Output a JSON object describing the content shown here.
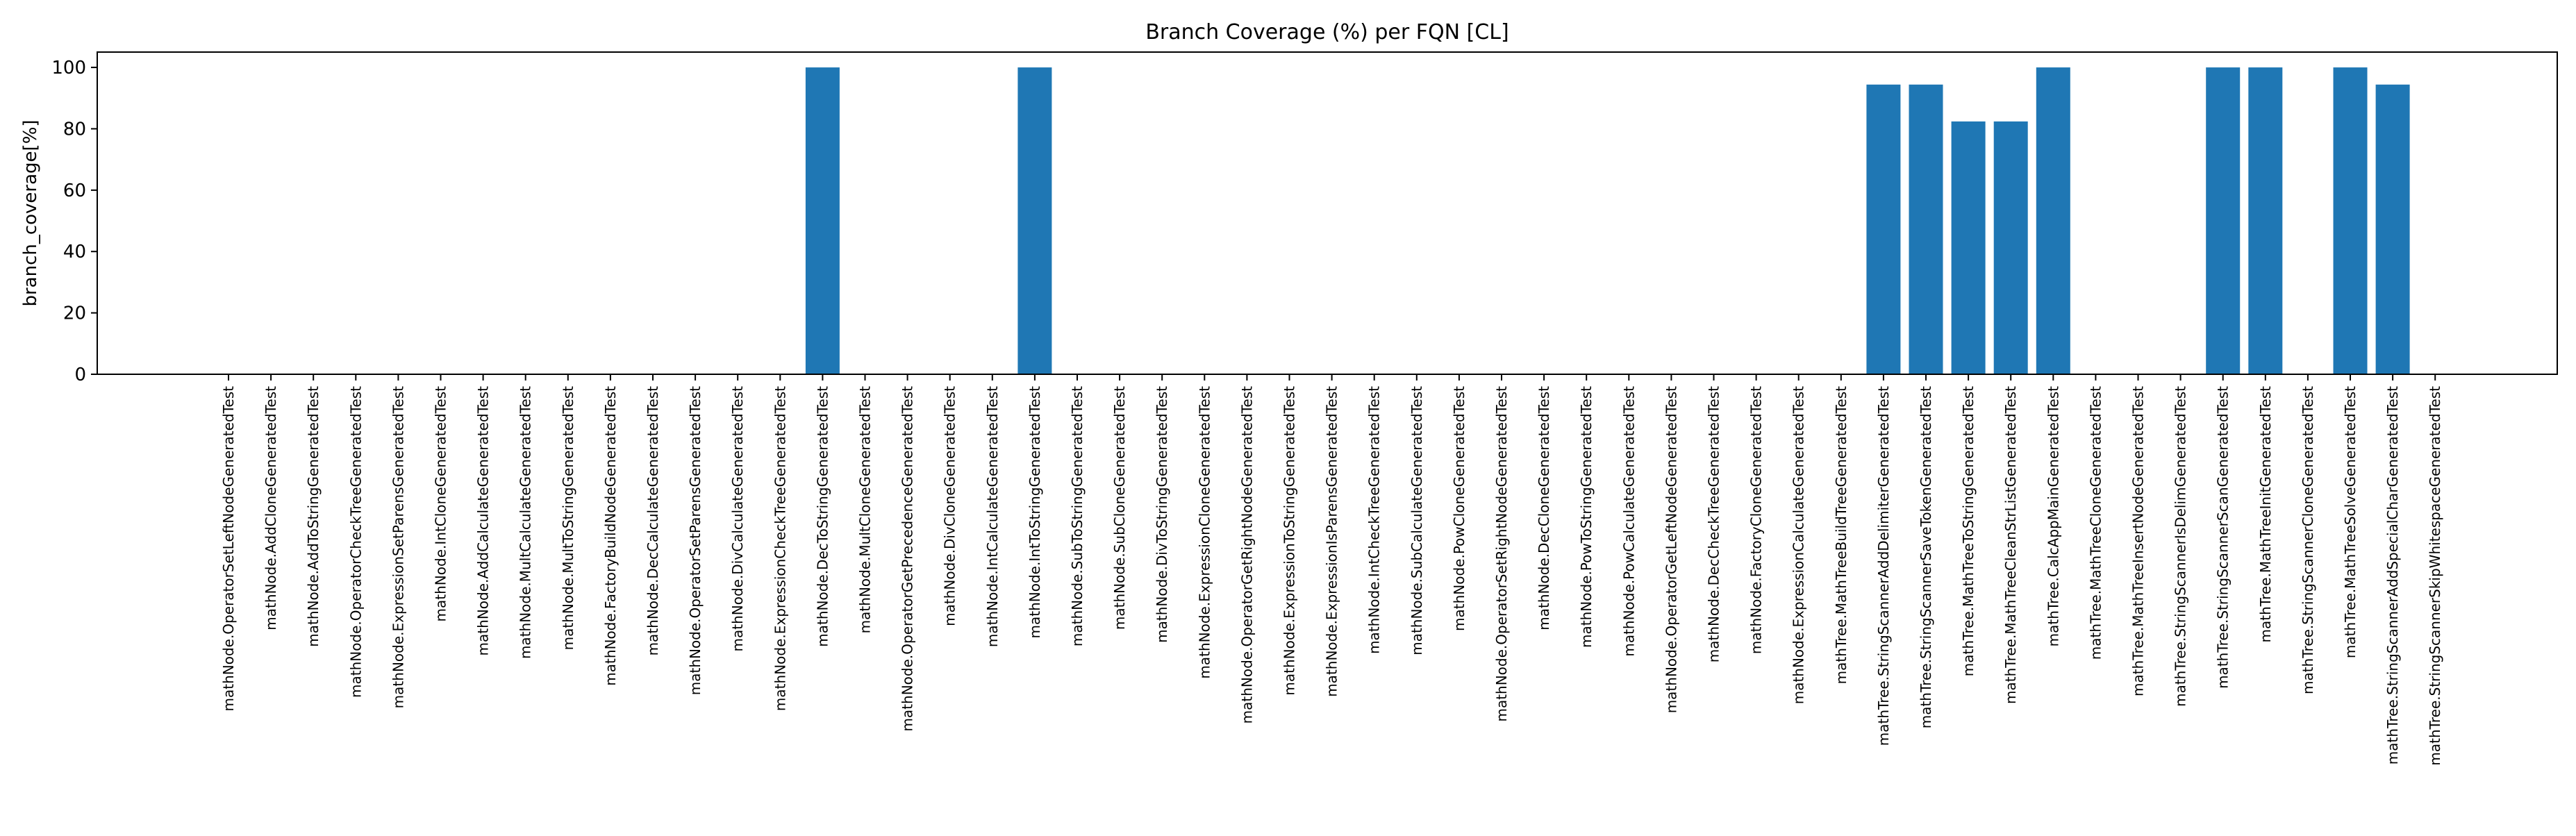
{
  "chart_data": {
    "type": "bar",
    "title": "Branch Coverage (%) per FQN [CL]",
    "xlabel": "",
    "ylabel": "branch_coverage[%]",
    "ylim": [
      0,
      105
    ],
    "yticks": [
      0,
      20,
      40,
      60,
      80,
      100
    ],
    "grid": false,
    "legend": "none",
    "bar_color": "#1f77b4",
    "categories": [
      "mathNode.OperatorSetLeftNodeGeneratedTest",
      "mathNode.AddCloneGeneratedTest",
      "mathNode.AddToStringGeneratedTest",
      "mathNode.OperatorCheckTreeGeneratedTest",
      "mathNode.ExpressionSetParensGeneratedTest",
      "mathNode.IntCloneGeneratedTest",
      "mathNode.AddCalculateGeneratedTest",
      "mathNode.MultCalculateGeneratedTest",
      "mathNode.MultToStringGeneratedTest",
      "mathNode.FactoryBuildNodeGeneratedTest",
      "mathNode.DecCalculateGeneratedTest",
      "mathNode.OperatorSetParensGeneratedTest",
      "mathNode.DivCalculateGeneratedTest",
      "mathNode.ExpressionCheckTreeGeneratedTest",
      "mathNode.DecToStringGeneratedTest",
      "mathNode.MultCloneGeneratedTest",
      "mathNode.OperatorGetPrecedenceGeneratedTest",
      "mathNode.DivCloneGeneratedTest",
      "mathNode.IntCalculateGeneratedTest",
      "mathNode.IntToStringGeneratedTest",
      "mathNode.SubToStringGeneratedTest",
      "mathNode.SubCloneGeneratedTest",
      "mathNode.DivToStringGeneratedTest",
      "mathNode.ExpressionCloneGeneratedTest",
      "mathNode.OperatorGetRightNodeGeneratedTest",
      "mathNode.ExpressionToStringGeneratedTest",
      "mathNode.ExpressionIsParensGeneratedTest",
      "mathNode.IntCheckTreeGeneratedTest",
      "mathNode.SubCalculateGeneratedTest",
      "mathNode.PowCloneGeneratedTest",
      "mathNode.OperatorSetRightNodeGeneratedTest",
      "mathNode.DecCloneGeneratedTest",
      "mathNode.PowToStringGeneratedTest",
      "mathNode.PowCalculateGeneratedTest",
      "mathNode.OperatorGetLeftNodeGeneratedTest",
      "mathNode.DecCheckTreeGeneratedTest",
      "mathNode.FactoryCloneGeneratedTest",
      "mathNode.ExpressionCalculateGeneratedTest",
      "mathTree.MathTreeBuildTreeGeneratedTest",
      "mathTree.StringScannerAddDelimiterGeneratedTest",
      "mathTree.StringScannerSaveTokenGeneratedTest",
      "mathTree.MathTreeToStringGeneratedTest",
      "mathTree.MathTreeCleanStrListGeneratedTest",
      "mathTree.CalcAppMainGeneratedTest",
      "mathTree.MathTreeCloneGeneratedTest",
      "mathTree.MathTreeInsertNodeGeneratedTest",
      "mathTree.StringScannerIsDelimGeneratedTest",
      "mathTree.StringScannerScanGeneratedTest",
      "mathTree.MathTreeInitGeneratedTest",
      "mathTree.StringScannerCloneGeneratedTest",
      "mathTree.MathTreeSolveGeneratedTest",
      "mathTree.StringScannerAddSpecialCharGeneratedTest",
      "mathTree.StringScannerSkipWhitespaceGeneratedTest"
    ],
    "values": [
      0,
      0,
      0,
      0,
      0,
      0,
      0,
      0,
      0,
      0,
      0,
      0,
      0,
      0,
      100,
      0,
      0,
      0,
      0,
      100,
      0,
      0,
      0,
      0,
      0,
      0,
      0,
      0,
      0,
      0,
      0,
      0,
      0,
      0,
      0,
      0,
      0,
      0,
      0,
      94.4,
      94.4,
      82.4,
      82.4,
      100,
      0,
      0,
      0,
      100,
      100,
      0,
      100,
      94.4,
      0
    ]
  }
}
